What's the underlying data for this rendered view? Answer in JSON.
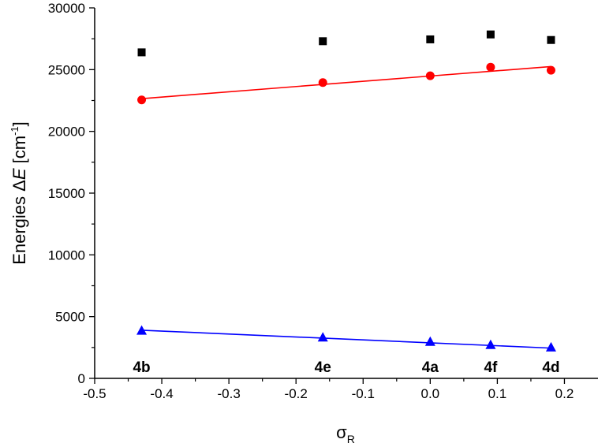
{
  "chart_data": {
    "type": "scatter",
    "title": "",
    "xlabel": {
      "symbol": "σ",
      "subscript": "R"
    },
    "ylabel": {
      "prefix": "Energies ",
      "delta": "Δ",
      "variable": "E",
      "unit_open": " [cm",
      "unit_exp": "-1",
      "unit_close": "]"
    },
    "xlim": [
      -0.5,
      0.25
    ],
    "ylim": [
      0,
      30000
    ],
    "xticks": [
      -0.5,
      -0.4,
      -0.3,
      -0.2,
      -0.1,
      0.0,
      0.1,
      0.2
    ],
    "xtick_labels": [
      "-0.5",
      "-0.4",
      "-0.3",
      "-0.2",
      "-0.1",
      "0.0",
      "0.1",
      "0.2"
    ],
    "yticks": [
      0,
      5000,
      10000,
      15000,
      20000,
      25000,
      30000
    ],
    "ytick_labels": [
      "0",
      "5000",
      "10000",
      "15000",
      "20000",
      "25000",
      "30000"
    ],
    "x": [
      -0.43,
      -0.16,
      0.0,
      0.09,
      0.18
    ],
    "point_labels": [
      "4b",
      "4e",
      "4a",
      "4f",
      "4d"
    ],
    "series": [
      {
        "name": "black squares",
        "marker": "square",
        "color": "#000000",
        "values": [
          26400,
          27300,
          27450,
          27850,
          27400
        ]
      },
      {
        "name": "red circles",
        "marker": "circle",
        "color": "#ff0000",
        "values": [
          22550,
          23950,
          24500,
          25200,
          24950
        ]
      },
      {
        "name": "blue triangles",
        "marker": "triangle",
        "color": "#0000ff",
        "values": [
          3850,
          3300,
          2950,
          2700,
          2500
        ]
      }
    ],
    "fit_lines": [
      {
        "series": "red circles",
        "color": "#ff0000",
        "x": [
          -0.43,
          0.18
        ],
        "y": [
          22650,
          25250
        ]
      },
      {
        "series": "blue triangles",
        "color": "#0000ff",
        "x": [
          -0.43,
          0.18
        ],
        "y": [
          3900,
          2450
        ]
      }
    ],
    "grid": false
  }
}
